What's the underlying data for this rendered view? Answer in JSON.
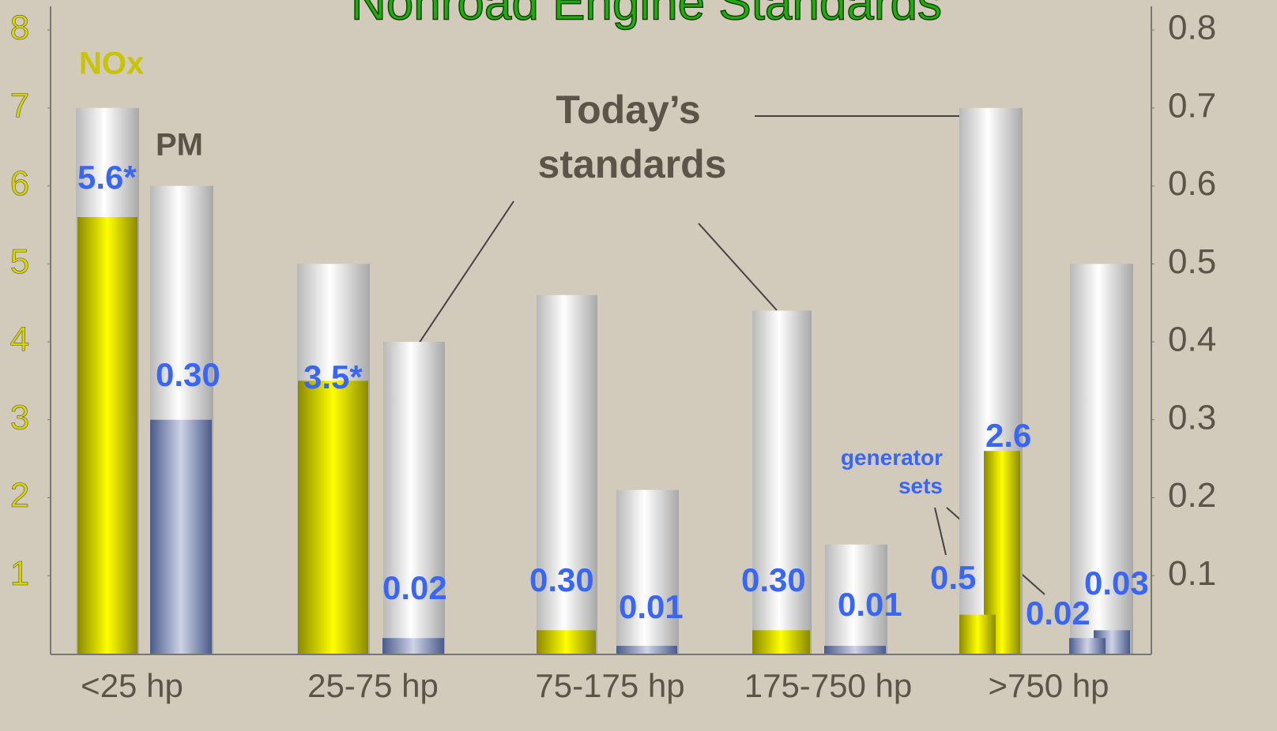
{
  "chart_data": {
    "type": "bar",
    "title": "Nonroad Engine Standards",
    "categories": [
      "<25 hp",
      "25-75 hp",
      "75-175 hp",
      "175-750 hp",
      ">750 hp"
    ],
    "series": [
      {
        "name": "NOx",
        "color": "#ffff00",
        "axis": "y",
        "values": [
          5.6,
          3.5,
          0.3,
          0.3,
          2.6
        ],
        "value_labels": [
          "5.6*",
          "3.5*",
          "0.30",
          "0.30",
          "2.6"
        ]
      },
      {
        "name": "PM",
        "color": "#8a94b8",
        "axis": "y2",
        "values": [
          0.3,
          0.02,
          0.01,
          0.01,
          0.03
        ],
        "value_labels": [
          "0.30",
          "0.02",
          "0.01",
          "0.01",
          "0.03"
        ]
      }
    ],
    "standards": {
      "label": "Today’s standards",
      "color": "#e8e8e8",
      "series": [
        {
          "axis": "y",
          "values": [
            7,
            5,
            4.6,
            4.4,
            7
          ]
        },
        {
          "axis": "y2",
          "values": [
            0.6,
            0.4,
            0.21,
            0.14,
            0.5
          ]
        }
      ]
    },
    "generator_sets": {
      "label": "generator sets",
      "values": [
        0.5,
        0.02
      ],
      "axes": [
        "y",
        "y2"
      ]
    },
    "ylim": [
      0,
      8
    ],
    "yticks": [
      1,
      2,
      3,
      4,
      5,
      6,
      7,
      8
    ],
    "y2lim": [
      0,
      0.8
    ],
    "y2ticks": [
      0.1,
      0.2,
      0.3,
      0.4,
      0.5,
      0.6,
      0.7,
      0.8
    ]
  }
}
